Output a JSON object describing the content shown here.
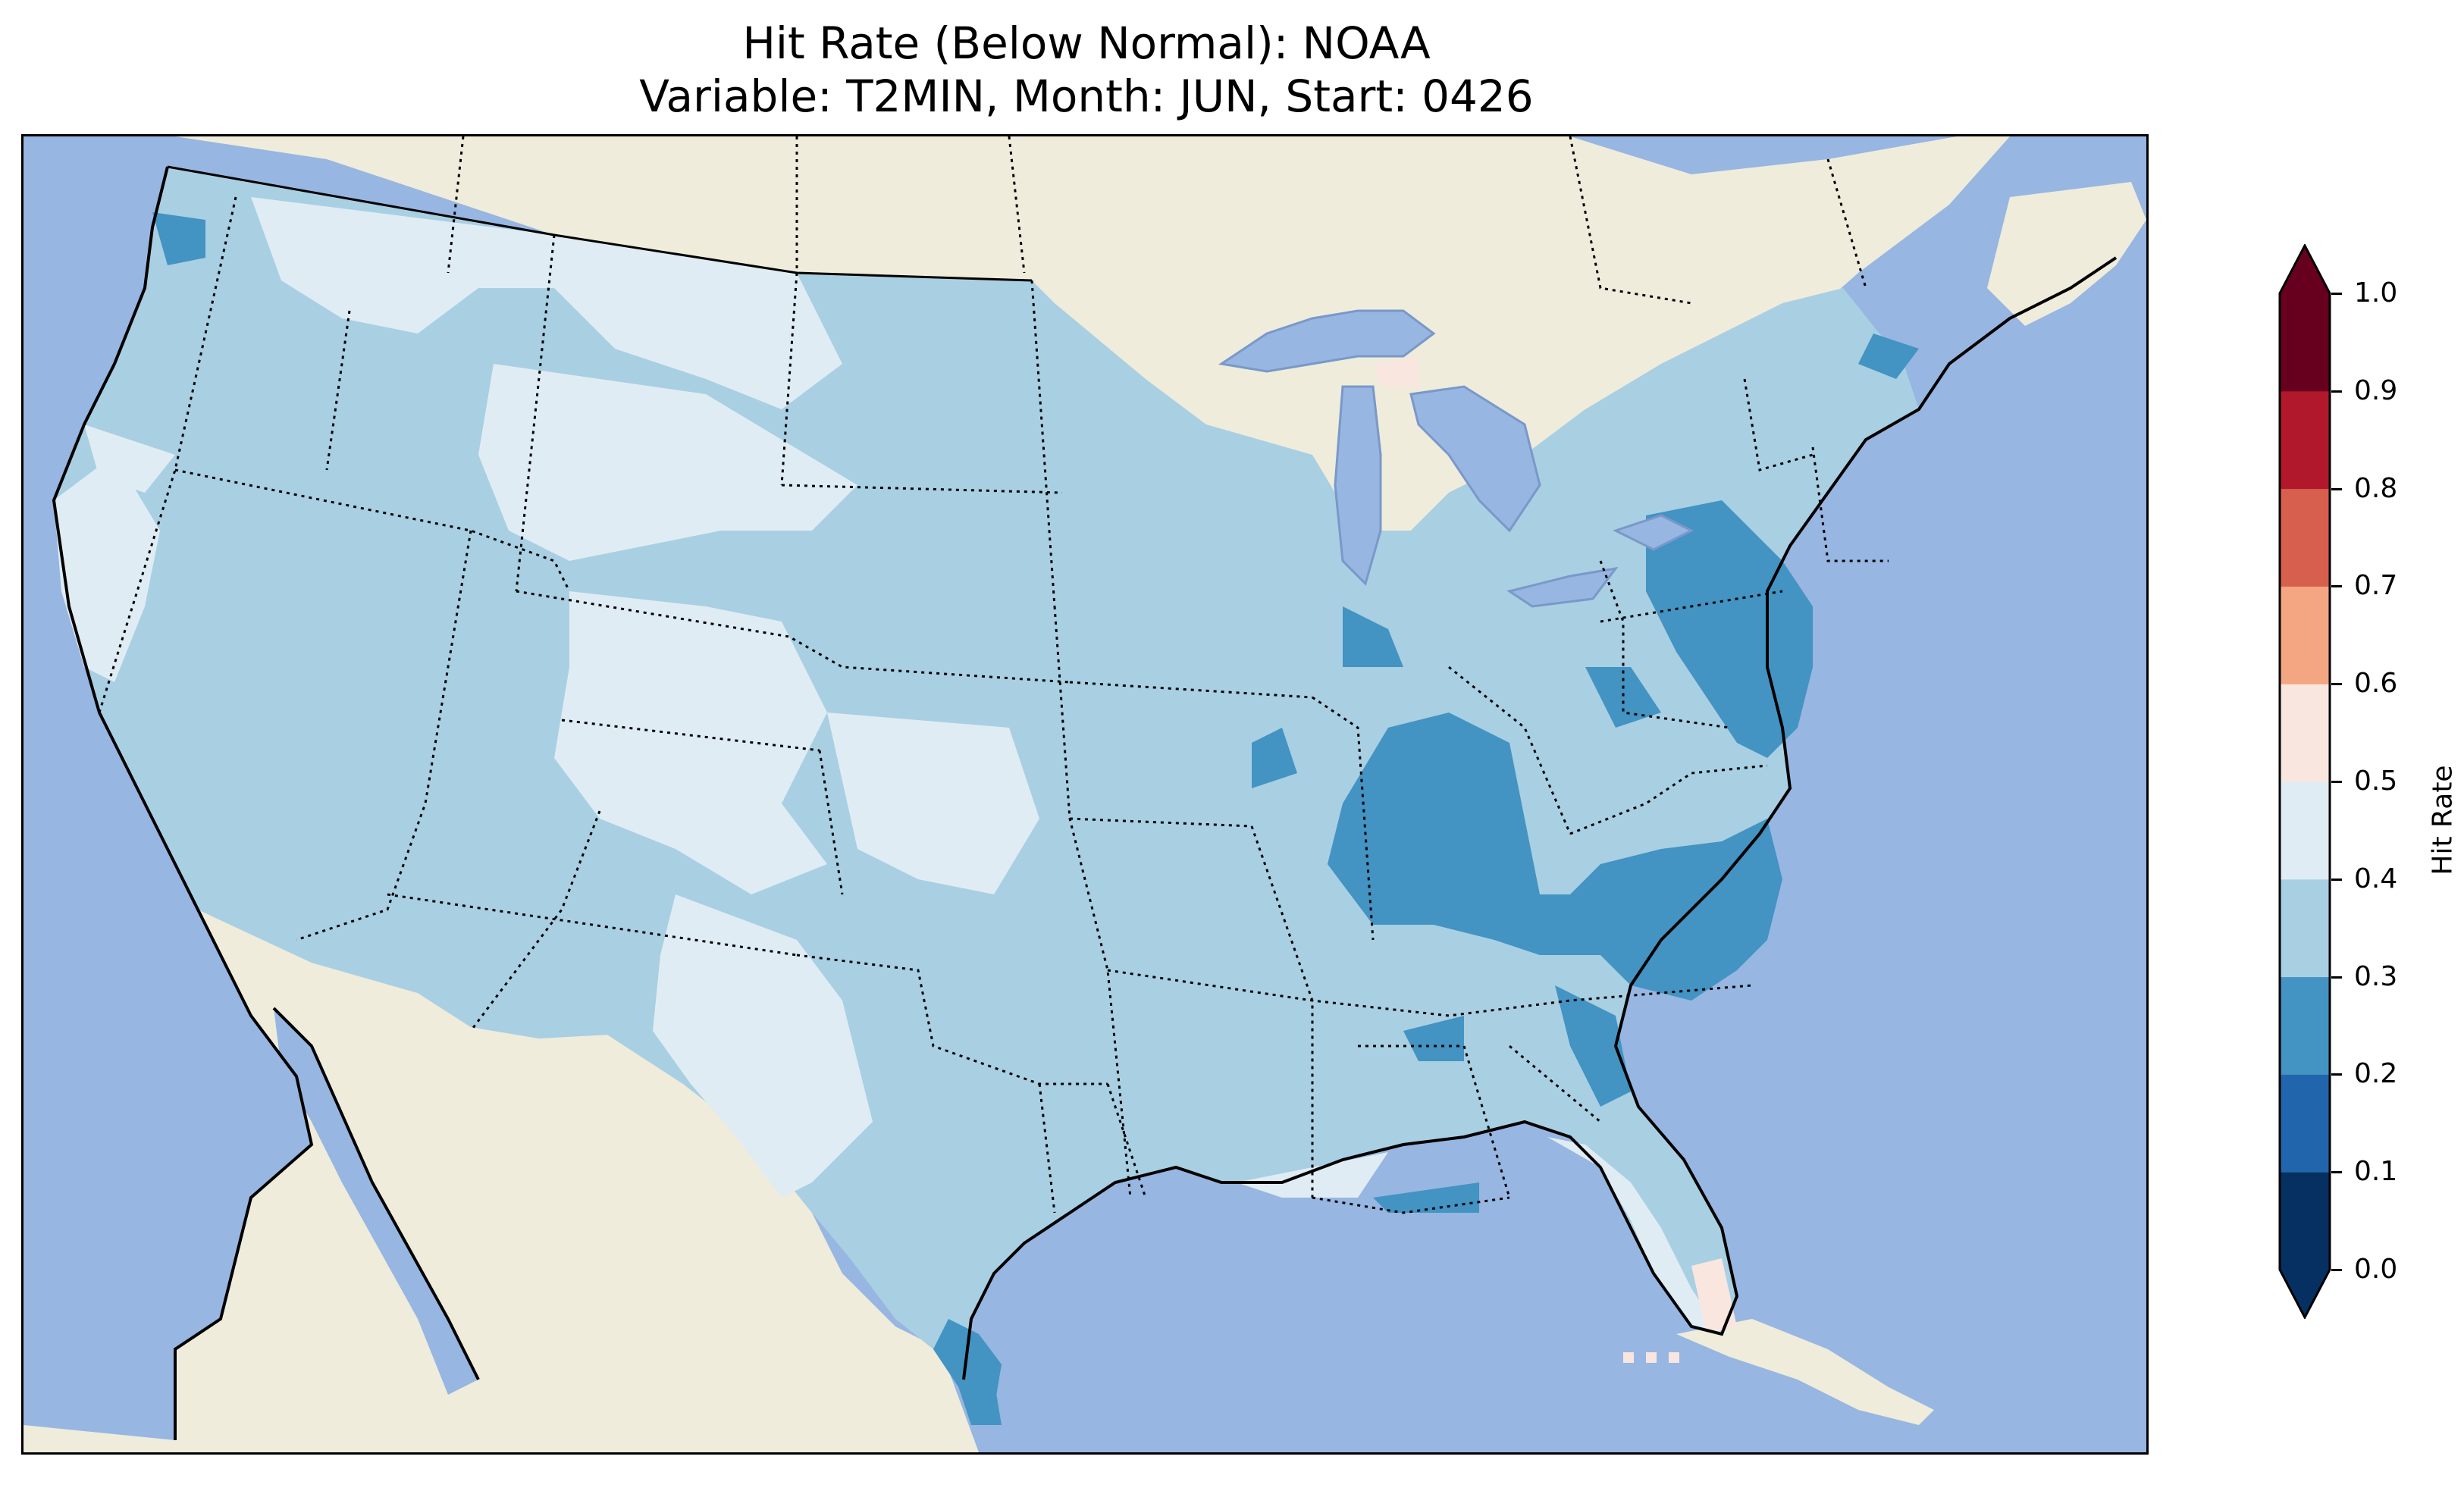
{
  "title": {
    "line1": "Hit Rate (Below Normal): NOAA",
    "line2": "Variable: T2MIN, Month: JUN, Start: 0426"
  },
  "colorbar": {
    "label": "Hit Rate",
    "ticks": [
      "0.0",
      "0.1",
      "0.2",
      "0.3",
      "0.4",
      "0.5",
      "0.6",
      "0.7",
      "0.8",
      "0.9",
      "1.0"
    ],
    "bins": [
      {
        "range": [
          0.0,
          0.1
        ],
        "color": "#053061"
      },
      {
        "range": [
          0.1,
          0.2
        ],
        "color": "#2166ac"
      },
      {
        "range": [
          0.2,
          0.3
        ],
        "color": "#4393c3"
      },
      {
        "range": [
          0.3,
          0.4
        ],
        "color": "#a9cfe3"
      },
      {
        "range": [
          0.4,
          0.5
        ],
        "color": "#e0ecf4"
      },
      {
        "range": [
          0.5,
          0.6
        ],
        "color": "#f8e6df"
      },
      {
        "range": [
          0.6,
          0.7
        ],
        "color": "#f4a582"
      },
      {
        "range": [
          0.7,
          0.8
        ],
        "color": "#d6604d"
      },
      {
        "range": [
          0.8,
          0.9
        ],
        "color": "#b2182b"
      },
      {
        "range": [
          0.9,
          1.0
        ],
        "color": "#67001f"
      }
    ],
    "extend": "both"
  },
  "map": {
    "projection": "Lambert conformal (CONUS)",
    "ocean_color": "#97b6e1",
    "land_color": "#efecdc",
    "lake_color": "#97b6e1",
    "borders": "state lines dotted, coastlines solid"
  }
}
